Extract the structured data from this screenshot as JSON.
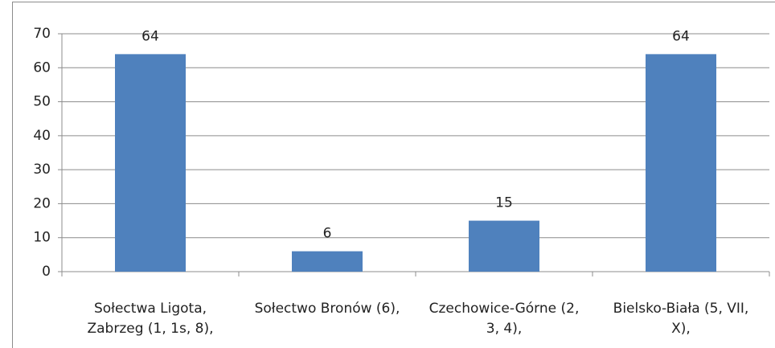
{
  "chart_data": {
    "type": "bar",
    "categories": [
      "Sołectwa Ligota, Zabrzeg (1, 1s, 8),",
      "Sołectwo Bronów (6),",
      "Czechowice-Górne (2, 3, 4),",
      "Bielsko-Biała (5, VII, X),"
    ],
    "values": [
      64,
      6,
      15,
      64
    ],
    "color": "#4f81bd",
    "ylim": [
      0,
      70
    ],
    "yticks": [
      0,
      10,
      20,
      30,
      40,
      50,
      60,
      70
    ],
    "grid": true
  }
}
